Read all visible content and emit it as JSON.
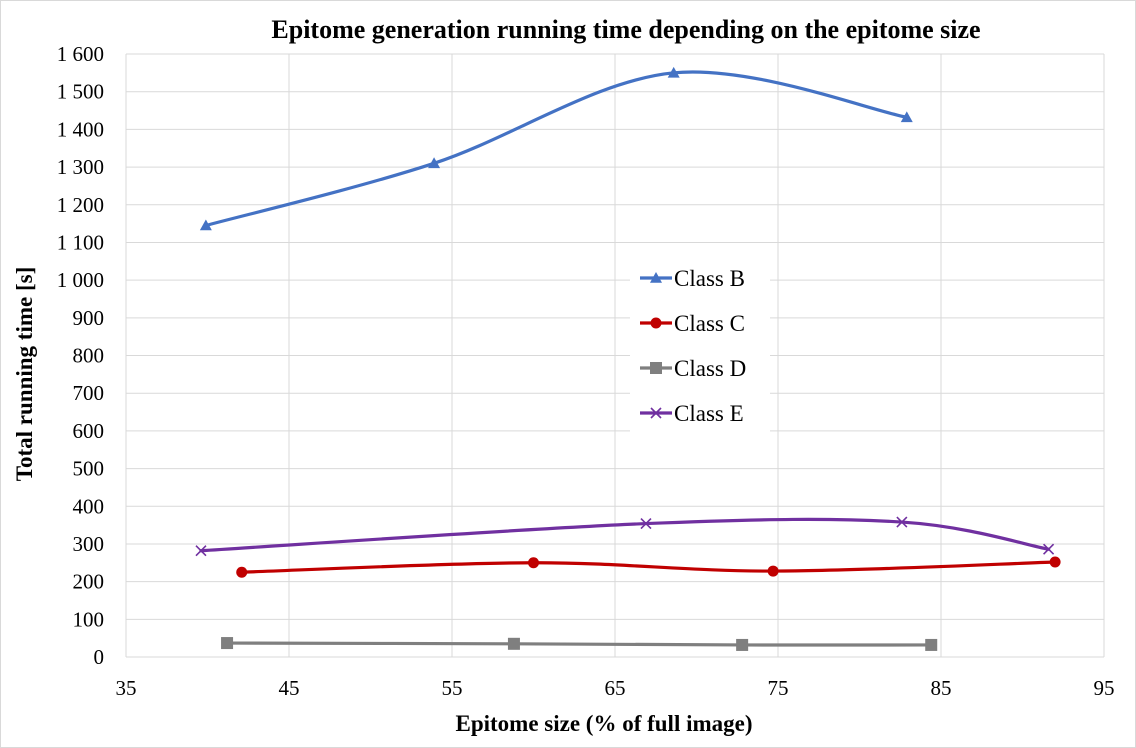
{
  "chart_data": {
    "type": "line",
    "title": "Epitome generation running time depending  on the epitome size",
    "xlabel": "Epitome size (% of full image)",
    "ylabel": "Total running time [s]",
    "xlim": [
      35,
      95
    ],
    "ylim": [
      0,
      1600
    ],
    "xticks": [
      35,
      45,
      55,
      65,
      75,
      85,
      95
    ],
    "yticks": [
      0,
      100,
      200,
      300,
      400,
      500,
      600,
      700,
      800,
      900,
      1000,
      1100,
      1200,
      1300,
      1400,
      1500,
      1600
    ],
    "ytick_labels": [
      "0",
      "100",
      "200",
      "300",
      "400",
      "500",
      "600",
      "700",
      "800",
      "900",
      "1 000",
      "1 100",
      "1 200",
      "1 300",
      "1 400",
      "1 500",
      "1 600"
    ],
    "grid": true,
    "smooth": true,
    "legend_position": "center",
    "series": [
      {
        "name": "Class B",
        "color": "#4472c4",
        "marker": "triangle",
        "x": [
          39.9,
          53.9,
          68.6,
          82.9
        ],
        "y": [
          1145,
          1310,
          1550,
          1432
        ]
      },
      {
        "name": "Class C",
        "color": "#c00000",
        "marker": "circle",
        "x": [
          42.1,
          60.0,
          74.7,
          92.0
        ],
        "y": [
          225,
          250,
          228,
          252
        ]
      },
      {
        "name": "Class D",
        "color": "#7f7f7f",
        "marker": "square",
        "x": [
          41.2,
          58.8,
          72.8,
          84.4
        ],
        "y": [
          37,
          35,
          32,
          32
        ]
      },
      {
        "name": "Class E",
        "color": "#7030a0",
        "marker": "x",
        "x": [
          39.6,
          66.9,
          82.6,
          91.6
        ],
        "y": [
          282,
          354,
          358,
          286
        ]
      }
    ]
  }
}
